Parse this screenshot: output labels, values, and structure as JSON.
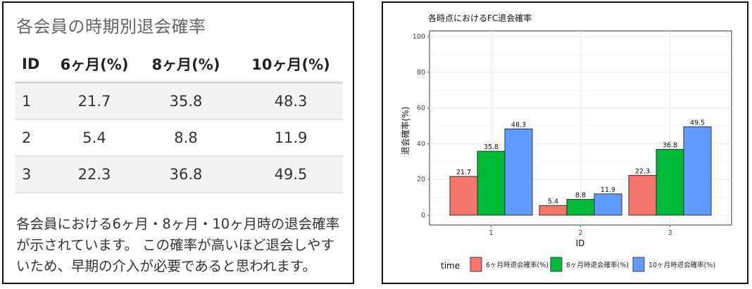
{
  "table_panel": {
    "title": "各会員の時期別退会確率",
    "headers": [
      "ID",
      "6ヶ月(%)",
      "8ヶ月(%)",
      "10ヶ月(%)"
    ],
    "rows": [
      [
        "1",
        "21.7",
        "35.8",
        "48.3"
      ],
      [
        "2",
        "5.4",
        "8.8",
        "11.9"
      ],
      [
        "3",
        "22.3",
        "36.8",
        "49.5"
      ]
    ],
    "description": [
      "各会員における6ヶ月・8ヶ月・10ヶ月時の退会確率",
      "が示されています。 この確率が高いほど退会しやす",
      "いため、早期の介入が必要であると思われます。"
    ]
  },
  "chart_data": {
    "type": "bar",
    "title": "各時点におけるFC退会確率",
    "xlabel": "ID",
    "ylabel": "退会確率(%)",
    "categories": [
      "1",
      "2",
      "3"
    ],
    "ylim": [
      0,
      100
    ],
    "yticks": [
      0,
      20,
      40,
      60,
      80,
      100
    ],
    "grid": true,
    "legend_position": "bottom",
    "legend_title": "time",
    "series": [
      {
        "name": "6ヶ月時退会確率(%)",
        "values": [
          21.7,
          5.4,
          22.3
        ],
        "color": "#F8766D"
      },
      {
        "name": "8ヶ月時退会確率(%)",
        "values": [
          35.8,
          8.8,
          36.8
        ],
        "color": "#00BA38"
      },
      {
        "name": "10ヶ月時退会確率(%)",
        "values": [
          48.3,
          11.9,
          49.5
        ],
        "color": "#619CFF"
      }
    ]
  }
}
